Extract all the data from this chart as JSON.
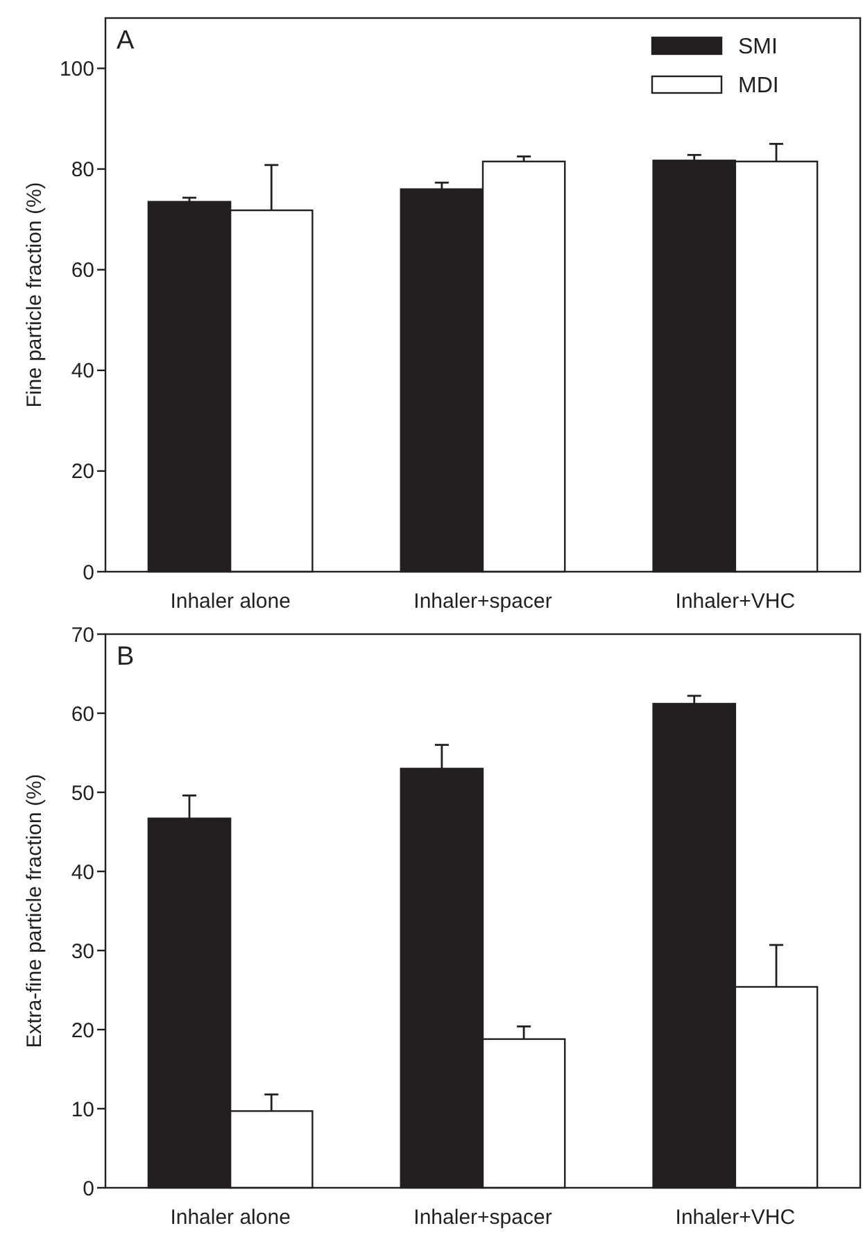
{
  "chart_data": [
    {
      "type": "bar",
      "ylabel": "Fine particle fraction (%)",
      "annotations": [
        "A"
      ],
      "categories": [
        "Inhaler alone",
        "Inhaler+spacer",
        "Inhaler+VHC"
      ],
      "ylim": [
        0,
        110
      ],
      "yticks": [
        0,
        20,
        40,
        60,
        80,
        100
      ],
      "legend": "top right",
      "series": [
        {
          "name": "SMI",
          "color": "#231f20",
          "values": [
            73.5,
            76,
            81.7
          ],
          "errors": [
            [
              73.5,
              74.3
            ],
            [
              76,
              77.3
            ],
            [
              81.7,
              82.8
            ]
          ]
        },
        {
          "name": "MDI",
          "color": "#ffffff",
          "values": [
            71.8,
            81.5,
            81.5
          ],
          "errors": [
            [
              71.8,
              80.8
            ],
            [
              81.5,
              82.5
            ],
            [
              81.5,
              85
            ]
          ]
        }
      ]
    },
    {
      "type": "bar",
      "ylabel": "Extra-fine particle fraction (%)",
      "annotations": [
        "B"
      ],
      "categories": [
        "Inhaler alone",
        "Inhaler+spacer",
        "Inhaler+VHC"
      ],
      "ylim": [
        0,
        70
      ],
      "yticks": [
        0,
        10,
        20,
        30,
        40,
        50,
        60,
        70
      ],
      "legend": false,
      "series": [
        {
          "color": "#231f20",
          "values": [
            46.7,
            53,
            61.2
          ],
          "errors": [
            [
              46.7,
              49.6
            ],
            [
              53,
              56
            ],
            [
              61.2,
              62.2
            ]
          ]
        },
        {
          "color": "#ffffff",
          "values": [
            9.7,
            18.8,
            25.4
          ],
          "errors": [
            [
              9.7,
              11.8
            ],
            [
              18.8,
              20.4
            ],
            [
              25.4,
              30.7
            ]
          ]
        }
      ]
    }
  ]
}
